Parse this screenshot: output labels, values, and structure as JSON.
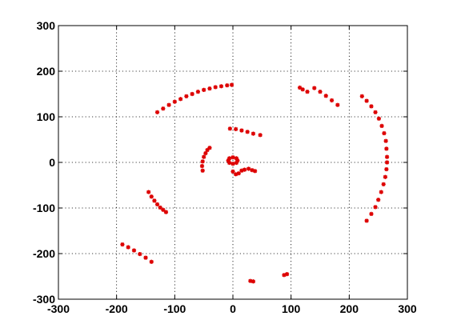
{
  "chart_data": {
    "type": "scatter",
    "title": "",
    "xlabel": "",
    "ylabel": "",
    "xlim": [
      -300,
      300
    ],
    "ylim": [
      -300,
      300
    ],
    "xticks": [
      -300,
      -200,
      -100,
      0,
      100,
      200,
      300
    ],
    "yticks": [
      -300,
      -200,
      -100,
      0,
      100,
      200,
      300
    ],
    "grid": true,
    "legend": "none",
    "marker": "asterisk",
    "colors": {
      "points": "#dd0000",
      "axes": "#000000",
      "background": "#ffffff"
    },
    "series": [
      {
        "values": [
          [
            -130,
            110
          ],
          [
            -120,
            118
          ],
          [
            -110,
            126
          ],
          [
            -100,
            133
          ],
          [
            -90,
            139
          ],
          [
            -80,
            145
          ],
          [
            -70,
            150
          ],
          [
            -60,
            155
          ],
          [
            -50,
            159
          ],
          [
            -40,
            162
          ],
          [
            -30,
            165
          ],
          [
            -20,
            167
          ],
          [
            -10,
            169
          ],
          [
            -2,
            170
          ],
          [
            -190,
            -180
          ],
          [
            -180,
            -186
          ],
          [
            -170,
            -193
          ],
          [
            -160,
            -201
          ],
          [
            -150,
            -209
          ],
          [
            -140,
            -218
          ],
          [
            -145,
            -65
          ],
          [
            -140,
            -75
          ],
          [
            -135,
            -84
          ],
          [
            -130,
            -92
          ],
          [
            -125,
            -99
          ],
          [
            -120,
            -104
          ],
          [
            -115,
            -109
          ],
          [
            -52,
            -18
          ],
          [
            -53,
            -8
          ],
          [
            -52,
            2
          ],
          [
            -50,
            12
          ],
          [
            -47,
            20
          ],
          [
            -44,
            27
          ],
          [
            -40,
            32
          ],
          [
            -5,
            74
          ],
          [
            5,
            73
          ],
          [
            15,
            70
          ],
          [
            25,
            67
          ],
          [
            35,
            63
          ],
          [
            47,
            60
          ],
          [
            -8,
            4
          ],
          [
            -6,
            9
          ],
          [
            0,
            11
          ],
          [
            6,
            9
          ],
          [
            8,
            4
          ],
          [
            6,
            -1
          ],
          [
            0,
            -3
          ],
          [
            -6,
            -1
          ],
          [
            0,
            -20
          ],
          [
            5,
            -26
          ],
          [
            10,
            -24
          ],
          [
            15,
            -18
          ],
          [
            20,
            -16
          ],
          [
            27,
            -14
          ],
          [
            33,
            -17
          ],
          [
            38,
            -19
          ],
          [
            115,
            164
          ],
          [
            120,
            160
          ],
          [
            128,
            155
          ],
          [
            140,
            163
          ],
          [
            150,
            155
          ],
          [
            160,
            146
          ],
          [
            170,
            136
          ],
          [
            180,
            126
          ],
          [
            222,
            145
          ],
          [
            230,
            135
          ],
          [
            238,
            123
          ],
          [
            245,
            110
          ],
          [
            251,
            96
          ],
          [
            256,
            80
          ],
          [
            260,
            64
          ],
          [
            263,
            47
          ],
          [
            264,
            30
          ],
          [
            265,
            12
          ],
          [
            265,
            0
          ],
          [
            264,
            -15
          ],
          [
            262,
            -32
          ],
          [
            259,
            -48
          ],
          [
            255,
            -65
          ],
          [
            250,
            -82
          ],
          [
            245,
            -98
          ],
          [
            238,
            -113
          ],
          [
            230,
            -128
          ],
          [
            30,
            -260
          ],
          [
            35,
            -261
          ],
          [
            88,
            -247
          ],
          [
            93,
            -245
          ]
        ]
      }
    ]
  }
}
